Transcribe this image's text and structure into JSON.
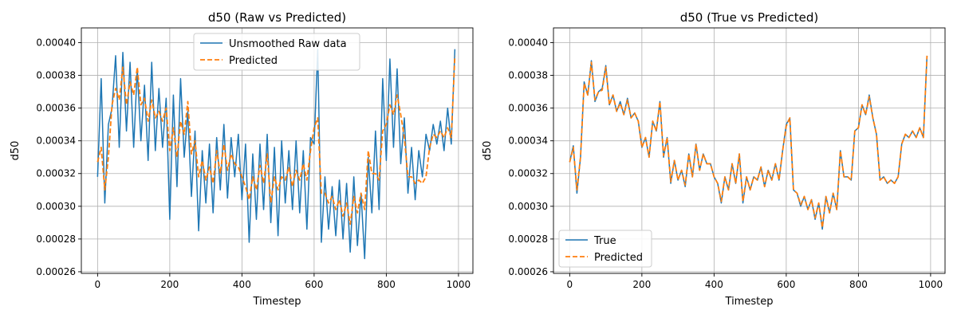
{
  "chart_data": [
    {
      "type": "line",
      "title": "d50 (Raw vs Predicted)",
      "xlabel": "Timestep",
      "ylabel": "d50",
      "xlim": [
        -45,
        1040
      ],
      "ylim": [
        0.000259,
        0.000409
      ],
      "xticks": [
        0,
        200,
        400,
        600,
        800,
        1000
      ],
      "xtick_labels": [
        "0",
        "200",
        "400",
        "600",
        "800",
        "1000"
      ],
      "yticks": [
        0.00026,
        0.00028,
        0.0003,
        0.00032,
        0.00034,
        0.00036,
        0.00038,
        0.0004
      ],
      "ytick_labels": [
        "0.00026",
        "0.00028",
        "0.00030",
        "0.00032",
        "0.00034",
        "0.00036",
        "0.00038",
        "0.00040"
      ],
      "grid": true,
      "legend_position": "top-center",
      "series": [
        {
          "name": "Unsmoothed Raw data",
          "color": "#1f77b4",
          "style": "solid",
          "x": [
            0,
            10,
            20,
            30,
            40,
            50,
            60,
            70,
            80,
            90,
            100,
            110,
            120,
            130,
            140,
            150,
            160,
            170,
            180,
            190,
            200,
            210,
            220,
            230,
            240,
            250,
            260,
            270,
            280,
            290,
            300,
            310,
            320,
            330,
            340,
            350,
            360,
            370,
            380,
            390,
            400,
            410,
            420,
            430,
            440,
            450,
            460,
            470,
            480,
            490,
            500,
            510,
            520,
            530,
            540,
            550,
            560,
            570,
            580,
            590,
            600,
            610,
            620,
            630,
            640,
            650,
            660,
            670,
            680,
            690,
            700,
            710,
            720,
            730,
            740,
            750,
            760,
            770,
            780,
            790,
            800,
            810,
            820,
            830,
            840,
            850,
            860,
            870,
            880,
            890,
            900,
            910,
            920,
            930,
            940,
            950,
            960,
            970,
            980,
            990
          ],
          "y": [
            0.000318,
            0.000378,
            0.000302,
            0.00035,
            0.00036,
            0.000392,
            0.000336,
            0.000394,
            0.000346,
            0.000388,
            0.000336,
            0.000384,
            0.00034,
            0.000374,
            0.000328,
            0.000388,
            0.000334,
            0.000372,
            0.000336,
            0.000366,
            0.000292,
            0.000368,
            0.000312,
            0.000378,
            0.00033,
            0.000358,
            0.000306,
            0.000346,
            0.000285,
            0.000334,
            0.000302,
            0.000338,
            0.000296,
            0.000342,
            0.00031,
            0.00035,
            0.000305,
            0.000342,
            0.000318,
            0.000344,
            0.000304,
            0.000338,
            0.000278,
            0.000332,
            0.000292,
            0.000338,
            0.000298,
            0.000344,
            0.00029,
            0.000336,
            0.000282,
            0.00034,
            0.000302,
            0.000334,
            0.000298,
            0.00034,
            0.000296,
            0.000334,
            0.000286,
            0.000342,
            0.000338,
            0.000396,
            0.000278,
            0.000318,
            0.000286,
            0.000312,
            0.000282,
            0.000316,
            0.00028,
            0.000314,
            0.000272,
            0.000318,
            0.000276,
            0.000308,
            0.000268,
            0.00033,
            0.000296,
            0.000346,
            0.000298,
            0.000378,
            0.000328,
            0.00039,
            0.000336,
            0.000384,
            0.000326,
            0.000354,
            0.000308,
            0.000336,
            0.000304,
            0.000334,
            0.000318,
            0.000344,
            0.000334,
            0.00035,
            0.000338,
            0.000352,
            0.000334,
            0.00036,
            0.000338,
            0.000396
          ]
        },
        {
          "name": "Predicted",
          "color": "#ff7f0e",
          "style": "dashed",
          "x": [
            0,
            10,
            20,
            30,
            40,
            50,
            60,
            70,
            80,
            90,
            100,
            110,
            120,
            130,
            140,
            150,
            160,
            170,
            180,
            190,
            200,
            210,
            220,
            230,
            240,
            250,
            260,
            270,
            280,
            290,
            300,
            310,
            320,
            330,
            340,
            350,
            360,
            370,
            380,
            390,
            400,
            410,
            420,
            430,
            440,
            450,
            460,
            470,
            480,
            490,
            500,
            510,
            520,
            530,
            540,
            550,
            560,
            570,
            580,
            590,
            600,
            610,
            620,
            630,
            640,
            650,
            660,
            670,
            680,
            690,
            700,
            710,
            720,
            730,
            740,
            750,
            760,
            770,
            780,
            790,
            800,
            810,
            820,
            830,
            840,
            850,
            860,
            870,
            880,
            890,
            900,
            910,
            920,
            930,
            940,
            950,
            960,
            970,
            980,
            990
          ],
          "y": [
            0.000327,
            0.000336,
            0.00031,
            0.00033,
            0.000362,
            0.000372,
            0.000365,
            0.000385,
            0.000362,
            0.000376,
            0.000368,
            0.000385,
            0.000362,
            0.000366,
            0.000352,
            0.000365,
            0.000354,
            0.000358,
            0.000352,
            0.00036,
            0.000334,
            0.000348,
            0.00033,
            0.000352,
            0.000344,
            0.000364,
            0.000332,
            0.00034,
            0.000318,
            0.000328,
            0.000316,
            0.000324,
            0.000314,
            0.000334,
            0.00032,
            0.000338,
            0.000322,
            0.000332,
            0.000326,
            0.000324,
            0.000318,
            0.000312,
            0.000304,
            0.000318,
            0.00031,
            0.000325,
            0.000314,
            0.000332,
            0.000302,
            0.000318,
            0.00031,
            0.000318,
            0.000316,
            0.000324,
            0.000312,
            0.000322,
            0.000316,
            0.000326,
            0.000316,
            0.000334,
            0.000348,
            0.000354,
            0.000308,
            0.000308,
            0.000302,
            0.000306,
            0.000298,
            0.000304,
            0.000294,
            0.000302,
            0.000289,
            0.000306,
            0.000296,
            0.000308,
            0.000298,
            0.000334,
            0.00032,
            0.00032,
            0.000316,
            0.000346,
            0.00035,
            0.000362,
            0.000356,
            0.000368,
            0.000356,
            0.000342,
            0.000318,
            0.000318,
            0.000314,
            0.000316,
            0.000314,
            0.000318,
            0.000336,
            0.000344,
            0.000342,
            0.000346,
            0.000342,
            0.000348,
            0.000342,
            0.000392
          ]
        }
      ]
    },
    {
      "type": "line",
      "title": "d50 (True vs Predicted)",
      "xlabel": "Timestep",
      "ylabel": "d50",
      "xlim": [
        -45,
        1040
      ],
      "ylim": [
        0.000259,
        0.000409
      ],
      "xticks": [
        0,
        200,
        400,
        600,
        800,
        1000
      ],
      "xtick_labels": [
        "0",
        "200",
        "400",
        "600",
        "800",
        "1000"
      ],
      "yticks": [
        0.00026,
        0.00028,
        0.0003,
        0.00032,
        0.00034,
        0.00036,
        0.00038,
        0.0004
      ],
      "ytick_labels": [
        "0.00026",
        "0.00028",
        "0.00030",
        "0.00032",
        "0.00034",
        "0.00036",
        "0.00038",
        "0.00040"
      ],
      "grid": true,
      "legend_position": "bottom-left",
      "series": [
        {
          "name": "True",
          "color": "#1f77b4",
          "style": "solid",
          "x": [
            0,
            10,
            20,
            30,
            40,
            50,
            60,
            70,
            80,
            90,
            100,
            110,
            120,
            130,
            140,
            150,
            160,
            170,
            180,
            190,
            200,
            210,
            220,
            230,
            240,
            250,
            260,
            270,
            280,
            290,
            300,
            310,
            320,
            330,
            340,
            350,
            360,
            370,
            380,
            390,
            400,
            410,
            420,
            430,
            440,
            450,
            460,
            470,
            480,
            490,
            500,
            510,
            520,
            530,
            540,
            550,
            560,
            570,
            580,
            590,
            600,
            610,
            620,
            630,
            640,
            650,
            660,
            670,
            680,
            690,
            700,
            710,
            720,
            730,
            740,
            750,
            760,
            770,
            780,
            790,
            800,
            810,
            820,
            830,
            840,
            850,
            860,
            870,
            880,
            890,
            900,
            910,
            920,
            930,
            940,
            950,
            960,
            970,
            980,
            990
          ],
          "y": [
            0.000327,
            0.000337,
            0.000308,
            0.00033,
            0.000376,
            0.000368,
            0.000389,
            0.000364,
            0.00037,
            0.000372,
            0.000386,
            0.000362,
            0.000368,
            0.000358,
            0.000364,
            0.000356,
            0.000366,
            0.000354,
            0.000357,
            0.000352,
            0.000336,
            0.000342,
            0.00033,
            0.000352,
            0.000346,
            0.000364,
            0.00033,
            0.000342,
            0.000314,
            0.000328,
            0.000316,
            0.000322,
            0.000312,
            0.000332,
            0.000318,
            0.000338,
            0.000322,
            0.000332,
            0.000326,
            0.000326,
            0.000318,
            0.000314,
            0.000302,
            0.000318,
            0.00031,
            0.000326,
            0.000314,
            0.000332,
            0.000302,
            0.000318,
            0.00031,
            0.000318,
            0.000316,
            0.000324,
            0.000312,
            0.000322,
            0.000316,
            0.000326,
            0.000316,
            0.000334,
            0.00035,
            0.000354,
            0.00031,
            0.000308,
            0.0003,
            0.000306,
            0.000298,
            0.000304,
            0.000292,
            0.000302,
            0.000286,
            0.000306,
            0.000296,
            0.000308,
            0.000298,
            0.000334,
            0.000318,
            0.000318,
            0.000316,
            0.000346,
            0.000348,
            0.000362,
            0.000356,
            0.000368,
            0.000354,
            0.000344,
            0.000316,
            0.000318,
            0.000314,
            0.000316,
            0.000314,
            0.000318,
            0.000338,
            0.000344,
            0.000342,
            0.000346,
            0.000342,
            0.000348,
            0.000342,
            0.000392
          ]
        },
        {
          "name": "Predicted",
          "color": "#ff7f0e",
          "style": "dashed",
          "x": [
            0,
            10,
            20,
            30,
            40,
            50,
            60,
            70,
            80,
            90,
            100,
            110,
            120,
            130,
            140,
            150,
            160,
            170,
            180,
            190,
            200,
            210,
            220,
            230,
            240,
            250,
            260,
            270,
            280,
            290,
            300,
            310,
            320,
            330,
            340,
            350,
            360,
            370,
            380,
            390,
            400,
            410,
            420,
            430,
            440,
            450,
            460,
            470,
            480,
            490,
            500,
            510,
            520,
            530,
            540,
            550,
            560,
            570,
            580,
            590,
            600,
            610,
            620,
            630,
            640,
            650,
            660,
            670,
            680,
            690,
            700,
            710,
            720,
            730,
            740,
            750,
            760,
            770,
            780,
            790,
            800,
            810,
            820,
            830,
            840,
            850,
            860,
            870,
            880,
            890,
            900,
            910,
            920,
            930,
            940,
            950,
            960,
            970,
            980,
            990
          ],
          "y": [
            0.000327,
            0.000336,
            0.00031,
            0.00033,
            0.000375,
            0.000368,
            0.000388,
            0.000365,
            0.00037,
            0.000371,
            0.000385,
            0.000362,
            0.000368,
            0.000358,
            0.000363,
            0.000356,
            0.000365,
            0.000354,
            0.000357,
            0.000352,
            0.000336,
            0.000342,
            0.00033,
            0.000352,
            0.000346,
            0.000364,
            0.000331,
            0.000342,
            0.000315,
            0.000328,
            0.000316,
            0.000322,
            0.000313,
            0.000332,
            0.000318,
            0.000338,
            0.000322,
            0.000332,
            0.000326,
            0.000326,
            0.000318,
            0.000314,
            0.000303,
            0.000318,
            0.00031,
            0.000326,
            0.000314,
            0.000332,
            0.000303,
            0.000318,
            0.00031,
            0.000318,
            0.000316,
            0.000324,
            0.000312,
            0.000322,
            0.000316,
            0.000326,
            0.000316,
            0.000334,
            0.000349,
            0.000354,
            0.00031,
            0.000308,
            0.000301,
            0.000306,
            0.000298,
            0.000304,
            0.000293,
            0.000302,
            0.000287,
            0.000306,
            0.000296,
            0.000308,
            0.000298,
            0.000334,
            0.000318,
            0.000318,
            0.000316,
            0.000346,
            0.000348,
            0.000362,
            0.000356,
            0.000367,
            0.000354,
            0.000344,
            0.000316,
            0.000318,
            0.000314,
            0.000316,
            0.000314,
            0.000318,
            0.000338,
            0.000344,
            0.000342,
            0.000346,
            0.000342,
            0.000348,
            0.000342,
            0.000392
          ]
        }
      ]
    }
  ]
}
